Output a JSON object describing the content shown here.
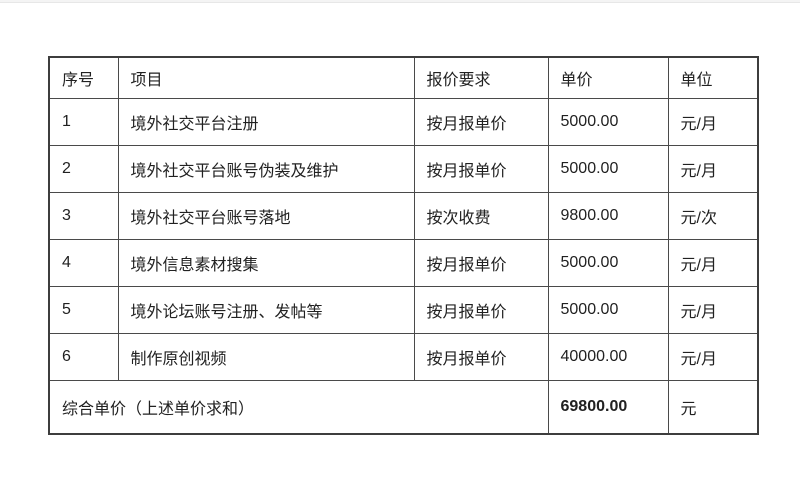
{
  "table": {
    "headers": [
      "序号",
      "项目",
      "报价要求",
      "单价",
      "单位"
    ],
    "rows": [
      {
        "no": "1",
        "item": "境外社交平台注册",
        "requirement": "按月报单价",
        "price": "5000.00",
        "unit": "元/月"
      },
      {
        "no": "2",
        "item": "境外社交平台账号伪装及维护",
        "requirement": "按月报单价",
        "price": "5000.00",
        "unit": "元/月"
      },
      {
        "no": "3",
        "item": "境外社交平台账号落地",
        "requirement": "按次收费",
        "price": "9800.00",
        "unit": "元/次"
      },
      {
        "no": "4",
        "item": "境外信息素材搜集",
        "requirement": "按月报单价",
        "price": "5000.00",
        "unit": "元/月"
      },
      {
        "no": "5",
        "item": "境外论坛账号注册、发帖等",
        "requirement": "按月报单价",
        "price": "5000.00",
        "unit": "元/月"
      },
      {
        "no": "6",
        "item": "制作原创视频",
        "requirement": "按月报单价",
        "price": "40000.00",
        "unit": "元/月"
      }
    ],
    "summary": {
      "label": "综合单价（上述单价求和）",
      "price": "69800.00",
      "unit": "元"
    }
  }
}
